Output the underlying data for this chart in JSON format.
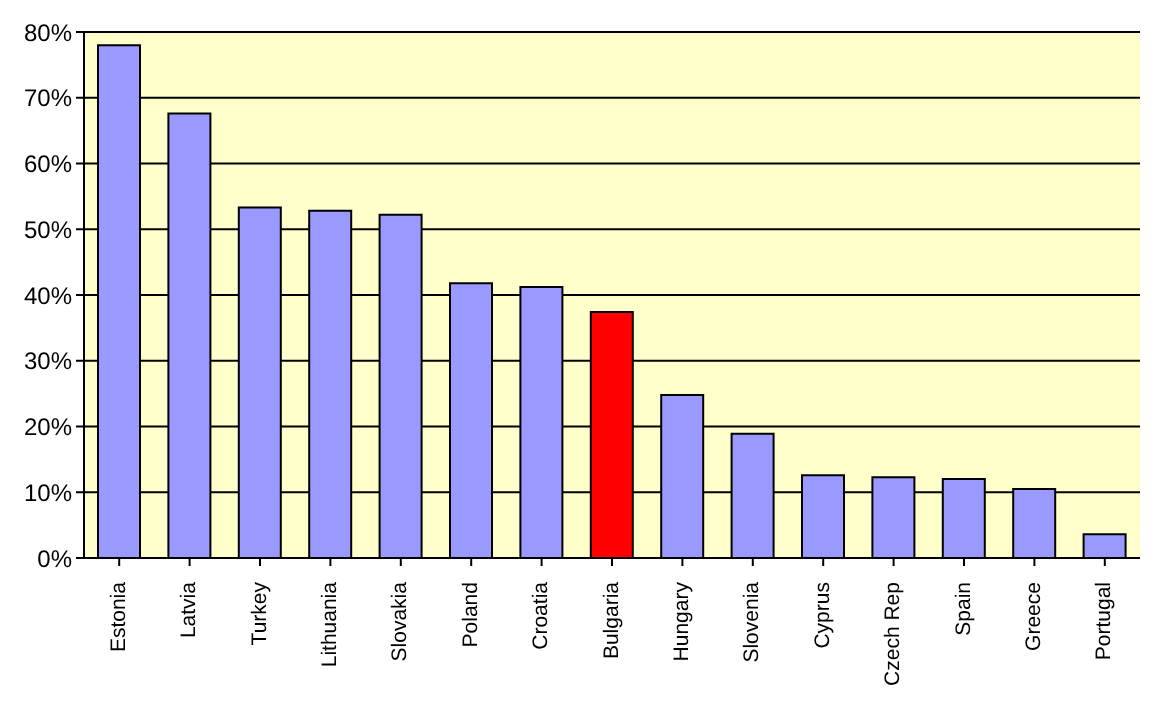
{
  "chart_data": {
    "type": "bar",
    "categories": [
      "Estonia",
      "Latvia",
      "Turkey",
      "Lithuania",
      "Slovakia",
      "Poland",
      "Croatia",
      "Bulgaria",
      "Hungary",
      "Slovenia",
      "Cyprus",
      "Czech Rep",
      "Spain",
      "Greece",
      "Portugal"
    ],
    "values": [
      78,
      67.6,
      53.3,
      52.8,
      52.2,
      41.8,
      41.2,
      37.4,
      24.8,
      18.9,
      12.6,
      12.3,
      12,
      10.5,
      3.6
    ],
    "colors": [
      "#9999ff",
      "#9999ff",
      "#9999ff",
      "#9999ff",
      "#9999ff",
      "#9999ff",
      "#9999ff",
      "#ff0000",
      "#9999ff",
      "#9999ff",
      "#9999ff",
      "#9999ff",
      "#9999ff",
      "#9999ff",
      "#9999ff"
    ],
    "ylim": [
      0,
      80
    ],
    "yticks": [
      {
        "value": 0,
        "label": "0%"
      },
      {
        "value": 10,
        "label": "10%"
      },
      {
        "value": 20,
        "label": "20%"
      },
      {
        "value": 30,
        "label": "30%"
      },
      {
        "value": 40,
        "label": "40%"
      },
      {
        "value": 50,
        "label": "50%"
      },
      {
        "value": 60,
        "label": "60%"
      },
      {
        "value": 70,
        "label": "70%"
      },
      {
        "value": 80,
        "label": "80%"
      }
    ],
    "grid": "y",
    "legend": false
  }
}
